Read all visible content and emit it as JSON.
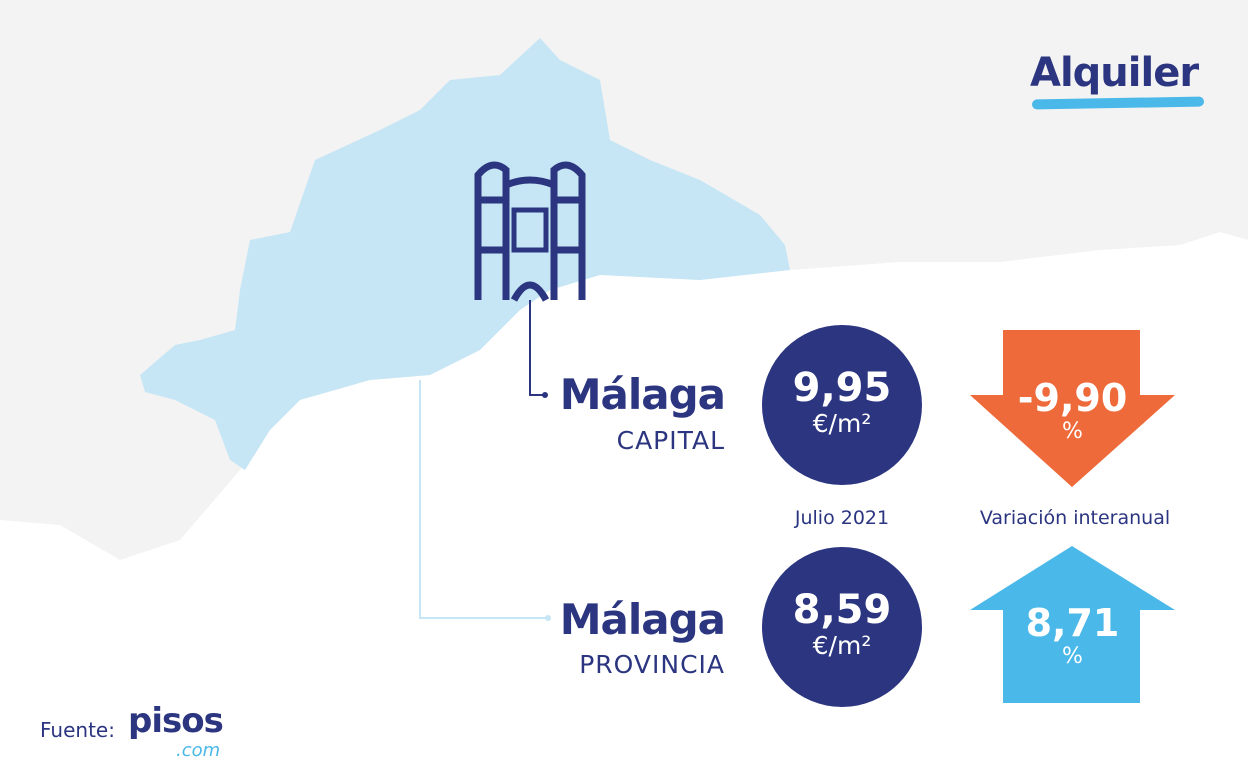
{
  "title": "Alquiler",
  "period_label": "Julio 2021",
  "variation_label": "Variación interanual",
  "rows": [
    {
      "name": "Málaga",
      "sub": "CAPITAL",
      "price": "9,95",
      "price_unit": "€/m²",
      "variation": "-9,90",
      "variation_unit": "%",
      "direction": "down",
      "color": "#ee6a3a"
    },
    {
      "name": "Málaga",
      "sub": "PROVINCIA",
      "price": "8,59",
      "price_unit": "€/m²",
      "variation": "8,71",
      "variation_unit": "%",
      "direction": "up",
      "color": "#4ab8e8"
    }
  ],
  "source": {
    "label": "Fuente:",
    "logo_main": "pisos",
    "logo_suffix": ".com"
  },
  "colors": {
    "navy": "#2b3580",
    "map": "#c6e6f5",
    "background": "#f3f3f3"
  },
  "icons": {
    "landmark": "cathedral-tower-icon"
  }
}
